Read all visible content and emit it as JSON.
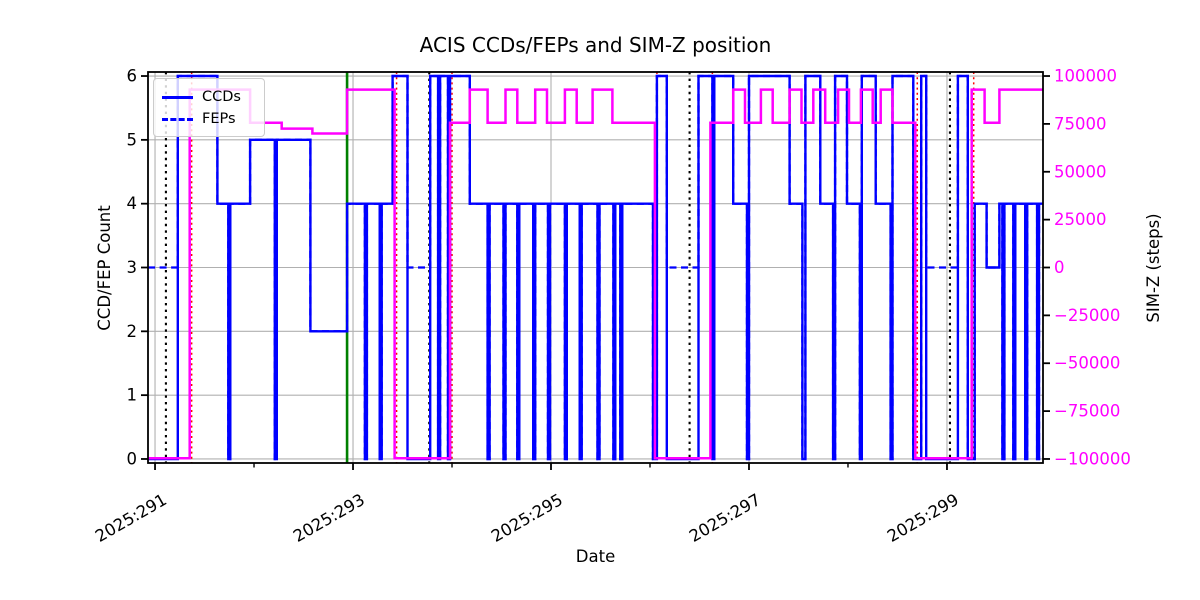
{
  "colors": {
    "ccds": "#0000ff",
    "feps": "#0000ff",
    "simz": "#ff00ff",
    "grid": "#b0b0b0",
    "spine": "#000000",
    "green_vline": "#008000",
    "black_vline": "#000000",
    "red_vline": "#ff0000",
    "right_axis_text": "#ff00ff"
  },
  "legend": {
    "items": [
      {
        "label": "CCDs",
        "style": "solid"
      },
      {
        "label": "FEPs",
        "style": "dashed"
      }
    ]
  },
  "chart_data": {
    "type": "line",
    "subtype": "step-post",
    "title": "ACIS CCDs/FEPs and SIM-Z position",
    "xlabel": "Date",
    "ylabel_left": "CCD/FEP Count",
    "ylabel_right": "SIM-Z (steps)",
    "grid": true,
    "legend_position": "upper left",
    "xlim": [
      290.929,
      299.97
    ],
    "ylim_left": [
      -0.063,
      6.063
    ],
    "ylim_right": [
      -102100,
      102100
    ],
    "xticks_major": [
      {
        "day": 291,
        "label": "2025:291"
      },
      {
        "day": 293,
        "label": "2025:293"
      },
      {
        "day": 295,
        "label": "2025:295"
      },
      {
        "day": 297,
        "label": "2025:297"
      },
      {
        "day": 299,
        "label": "2025:299"
      }
    ],
    "xticks_minor": [
      292,
      294,
      296,
      298
    ],
    "yticks_left": [
      {
        "v": 0,
        "label": "0"
      },
      {
        "v": 1,
        "label": "1"
      },
      {
        "v": 2,
        "label": "2"
      },
      {
        "v": 3,
        "label": "3"
      },
      {
        "v": 4,
        "label": "4"
      },
      {
        "v": 5,
        "label": "5"
      },
      {
        "v": 6,
        "label": "6"
      }
    ],
    "yticks_right": [
      {
        "v": 100000,
        "label": "100000"
      },
      {
        "v": 75000,
        "label": "75000"
      },
      {
        "v": 50000,
        "label": "50000"
      },
      {
        "v": 25000,
        "label": "25000"
      },
      {
        "v": 0,
        "label": "0"
      },
      {
        "v": -25000,
        "label": "−25000"
      },
      {
        "v": -50000,
        "label": "−50000"
      },
      {
        "v": -75000,
        "label": "−75000"
      },
      {
        "v": -100000,
        "label": "−100000"
      }
    ],
    "vlines": {
      "green_solid": [
        292.94
      ],
      "black_dotted": [
        291.11,
        293.77,
        296.4,
        299.03
      ],
      "red_dotted": [
        291.37,
        293.44,
        294.0,
        296.07,
        296.63,
        298.7,
        299.27
      ]
    },
    "series": [
      {
        "name": "CCDs",
        "axis": "left",
        "style": "solid",
        "points": [
          [
            290.93,
            0
          ],
          [
            291.23,
            6
          ],
          [
            291.63,
            4
          ],
          [
            291.74,
            0
          ],
          [
            291.76,
            4
          ],
          [
            291.96,
            5
          ],
          [
            292.21,
            0
          ],
          [
            292.23,
            5
          ],
          [
            292.57,
            2
          ],
          [
            292.94,
            4
          ],
          [
            293.12,
            0
          ],
          [
            293.14,
            4
          ],
          [
            293.27,
            0
          ],
          [
            293.29,
            4
          ],
          [
            293.4,
            6
          ],
          [
            293.55,
            0
          ],
          [
            293.78,
            6
          ],
          [
            293.86,
            0
          ],
          [
            293.88,
            6
          ],
          [
            293.96,
            0
          ],
          [
            293.98,
            6
          ],
          [
            294.18,
            4
          ],
          [
            294.36,
            0
          ],
          [
            294.38,
            4
          ],
          [
            294.52,
            0
          ],
          [
            294.54,
            4
          ],
          [
            294.66,
            0
          ],
          [
            294.68,
            4
          ],
          [
            294.82,
            0
          ],
          [
            294.84,
            4
          ],
          [
            294.97,
            0
          ],
          [
            294.99,
            4
          ],
          [
            295.14,
            0
          ],
          [
            295.16,
            4
          ],
          [
            295.29,
            0
          ],
          [
            295.31,
            4
          ],
          [
            295.47,
            0
          ],
          [
            295.49,
            4
          ],
          [
            295.63,
            0
          ],
          [
            295.65,
            4
          ],
          [
            295.7,
            0
          ],
          [
            295.72,
            4
          ],
          [
            296.03,
            0
          ],
          [
            296.07,
            6
          ],
          [
            296.17,
            0
          ],
          [
            296.49,
            6
          ],
          [
            296.63,
            0
          ],
          [
            296.65,
            6
          ],
          [
            296.84,
            4
          ],
          [
            296.98,
            0
          ],
          [
            297.0,
            6
          ],
          [
            297.41,
            4
          ],
          [
            297.54,
            0
          ],
          [
            297.57,
            6
          ],
          [
            297.72,
            4
          ],
          [
            297.85,
            0
          ],
          [
            297.87,
            6
          ],
          [
            297.99,
            4
          ],
          [
            298.12,
            0
          ],
          [
            298.14,
            6
          ],
          [
            298.28,
            4
          ],
          [
            298.43,
            0
          ],
          [
            298.45,
            6
          ],
          [
            298.66,
            0
          ],
          [
            298.74,
            6
          ],
          [
            298.79,
            0
          ],
          [
            299.11,
            6
          ],
          [
            299.21,
            0
          ],
          [
            299.28,
            4
          ],
          [
            299.4,
            3
          ],
          [
            299.53,
            4
          ],
          [
            299.56,
            0
          ],
          [
            299.58,
            4
          ],
          [
            299.67,
            0
          ],
          [
            299.69,
            4
          ],
          [
            299.79,
            0
          ],
          [
            299.81,
            4
          ],
          [
            299.91,
            0
          ],
          [
            299.93,
            4
          ]
        ]
      },
      {
        "name": "FEPs",
        "axis": "left",
        "style": "dashed",
        "points": [
          [
            290.93,
            3
          ],
          [
            291.23,
            6
          ],
          [
            291.63,
            4
          ],
          [
            291.74,
            0
          ],
          [
            291.76,
            4
          ],
          [
            291.96,
            5
          ],
          [
            292.21,
            0
          ],
          [
            292.23,
            5
          ],
          [
            292.57,
            2
          ],
          [
            292.94,
            4
          ],
          [
            293.12,
            0
          ],
          [
            293.14,
            4
          ],
          [
            293.27,
            0
          ],
          [
            293.29,
            4
          ],
          [
            293.4,
            6
          ],
          [
            293.55,
            3
          ],
          [
            293.78,
            6
          ],
          [
            293.86,
            0
          ],
          [
            293.88,
            6
          ],
          [
            293.96,
            0
          ],
          [
            293.98,
            6
          ],
          [
            294.18,
            4
          ],
          [
            294.36,
            0
          ],
          [
            294.38,
            4
          ],
          [
            294.52,
            0
          ],
          [
            294.54,
            4
          ],
          [
            294.66,
            0
          ],
          [
            294.68,
            4
          ],
          [
            294.82,
            0
          ],
          [
            294.84,
            4
          ],
          [
            294.97,
            0
          ],
          [
            294.99,
            4
          ],
          [
            295.14,
            0
          ],
          [
            295.16,
            4
          ],
          [
            295.29,
            0
          ],
          [
            295.31,
            4
          ],
          [
            295.47,
            0
          ],
          [
            295.49,
            4
          ],
          [
            295.63,
            0
          ],
          [
            295.65,
            4
          ],
          [
            295.7,
            0
          ],
          [
            295.72,
            4
          ],
          [
            296.03,
            0
          ],
          [
            296.07,
            6
          ],
          [
            296.17,
            3
          ],
          [
            296.49,
            6
          ],
          [
            296.63,
            0
          ],
          [
            296.65,
            6
          ],
          [
            296.84,
            4
          ],
          [
            296.98,
            0
          ],
          [
            297.0,
            6
          ],
          [
            297.41,
            4
          ],
          [
            297.54,
            0
          ],
          [
            297.57,
            6
          ],
          [
            297.72,
            4
          ],
          [
            297.85,
            0
          ],
          [
            297.87,
            6
          ],
          [
            297.99,
            4
          ],
          [
            298.12,
            0
          ],
          [
            298.14,
            6
          ],
          [
            298.28,
            4
          ],
          [
            298.43,
            0
          ],
          [
            298.45,
            6
          ],
          [
            298.66,
            0
          ],
          [
            298.74,
            6
          ],
          [
            298.79,
            3
          ],
          [
            299.11,
            6
          ],
          [
            299.21,
            0
          ],
          [
            299.28,
            4
          ],
          [
            299.4,
            3
          ],
          [
            299.53,
            4
          ],
          [
            299.56,
            0
          ],
          [
            299.58,
            4
          ],
          [
            299.67,
            0
          ],
          [
            299.69,
            4
          ],
          [
            299.79,
            0
          ],
          [
            299.81,
            4
          ],
          [
            299.91,
            0
          ],
          [
            299.93,
            4
          ]
        ]
      },
      {
        "name": "SIM-Z",
        "axis": "right",
        "style": "solid",
        "points": [
          [
            290.93,
            -99616
          ],
          [
            291.35,
            92904
          ],
          [
            291.96,
            75624
          ],
          [
            292.28,
            72520
          ],
          [
            292.59,
            70000
          ],
          [
            292.94,
            92904
          ],
          [
            293.42,
            -99616
          ],
          [
            293.98,
            75624
          ],
          [
            294.18,
            92904
          ],
          [
            294.36,
            75624
          ],
          [
            294.54,
            92904
          ],
          [
            294.66,
            75624
          ],
          [
            294.84,
            92904
          ],
          [
            294.96,
            75624
          ],
          [
            295.14,
            92904
          ],
          [
            295.26,
            75624
          ],
          [
            295.42,
            92904
          ],
          [
            295.62,
            75624
          ],
          [
            296.05,
            -99616
          ],
          [
            296.61,
            75624
          ],
          [
            296.84,
            92904
          ],
          [
            296.96,
            75624
          ],
          [
            297.12,
            92904
          ],
          [
            297.24,
            75624
          ],
          [
            297.41,
            92904
          ],
          [
            297.53,
            75624
          ],
          [
            297.65,
            92904
          ],
          [
            297.77,
            75624
          ],
          [
            297.9,
            92904
          ],
          [
            298.01,
            75624
          ],
          [
            298.13,
            92904
          ],
          [
            298.25,
            75624
          ],
          [
            298.33,
            92904
          ],
          [
            298.45,
            75624
          ],
          [
            298.68,
            -99616
          ],
          [
            299.25,
            92904
          ],
          [
            299.38,
            75624
          ],
          [
            299.53,
            92904
          ]
        ]
      }
    ]
  }
}
